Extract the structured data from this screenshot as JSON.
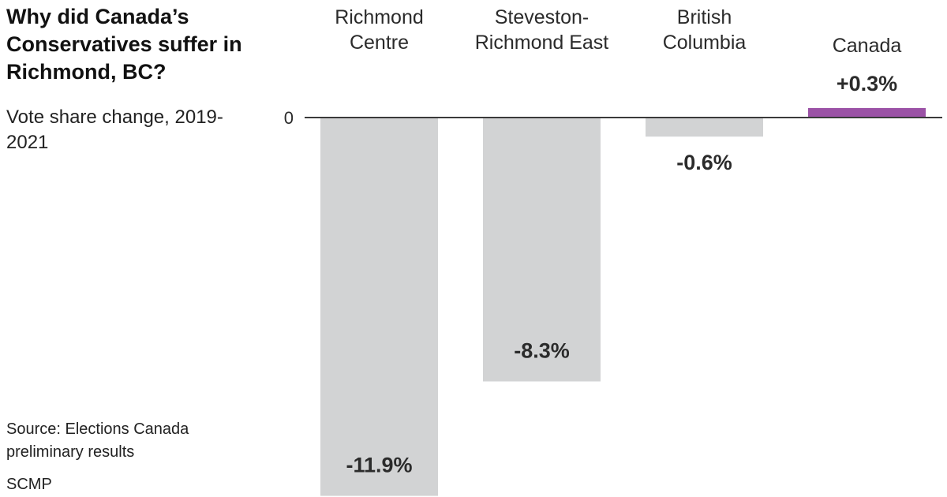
{
  "chart_data": {
    "type": "bar",
    "title": "Why did Canada’s Conservatives suffer in Richmond, BC?",
    "subtitle": "Vote share change, 2019-2021",
    "categories": [
      [
        "Richmond",
        "Centre"
      ],
      [
        "Steveston-",
        "Richmond East"
      ],
      [
        "British",
        "Columbia"
      ],
      [
        "Canada"
      ]
    ],
    "values": [
      -11.9,
      -8.3,
      -0.6,
      0.3
    ],
    "value_labels": [
      "-11.9%",
      "-8.3%",
      "-0.6%",
      "+0.3%"
    ],
    "zero_label": "0",
    "ylim": [
      -12,
      0.3
    ],
    "colors": {
      "negative": "#d2d3d4",
      "positive": "#9b52a6",
      "axis": "#3a3a3a",
      "label": "#2b2b2b"
    }
  },
  "source": {
    "line1": "Source: Elections Canada",
    "line2": "preliminary results",
    "credit": "SCMP"
  }
}
